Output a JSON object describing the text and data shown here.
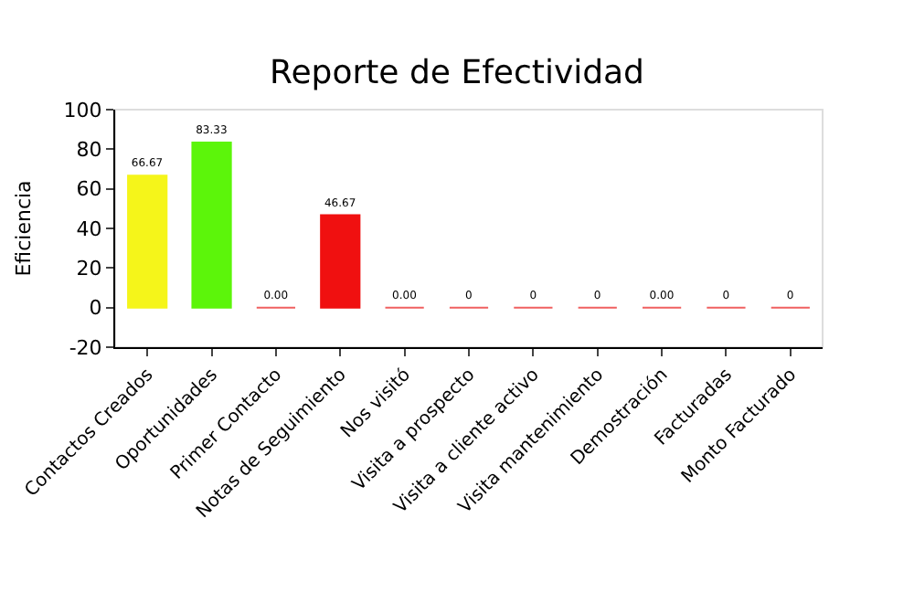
{
  "chart_data": {
    "type": "bar",
    "title": "Reporte de Efectividad",
    "ylabel": "Eficiencia",
    "categories": [
      "Contactos Creados",
      "Oportunidades",
      "Primer Contacto",
      "Notas de Seguimiento",
      "Nos visitó",
      "Visita a prospecto",
      "Visita a cliente activo",
      "Visita mantenimiento",
      "Demostración",
      "Facturadas",
      "Monto Facturado"
    ],
    "values": [
      66.67,
      83.33,
      0,
      46.67,
      0,
      0,
      0,
      0,
      0,
      0,
      0
    ],
    "value_labels": [
      "66.67",
      "83.33",
      "0.00",
      "46.67",
      "0.00",
      "0",
      "0",
      "0",
      "0.00",
      "0",
      "0"
    ],
    "colors": [
      "#f5f51a",
      "#5cf50a",
      "#f06060",
      "#f01010",
      "#f06060",
      "#f06060",
      "#f06060",
      "#f06060",
      "#f06060",
      "#f06060",
      "#f06060"
    ],
    "ylim": [
      -20,
      100
    ],
    "yticks": [
      -20,
      0,
      20,
      40,
      60,
      80,
      100
    ],
    "grid": false,
    "legend": false
  }
}
